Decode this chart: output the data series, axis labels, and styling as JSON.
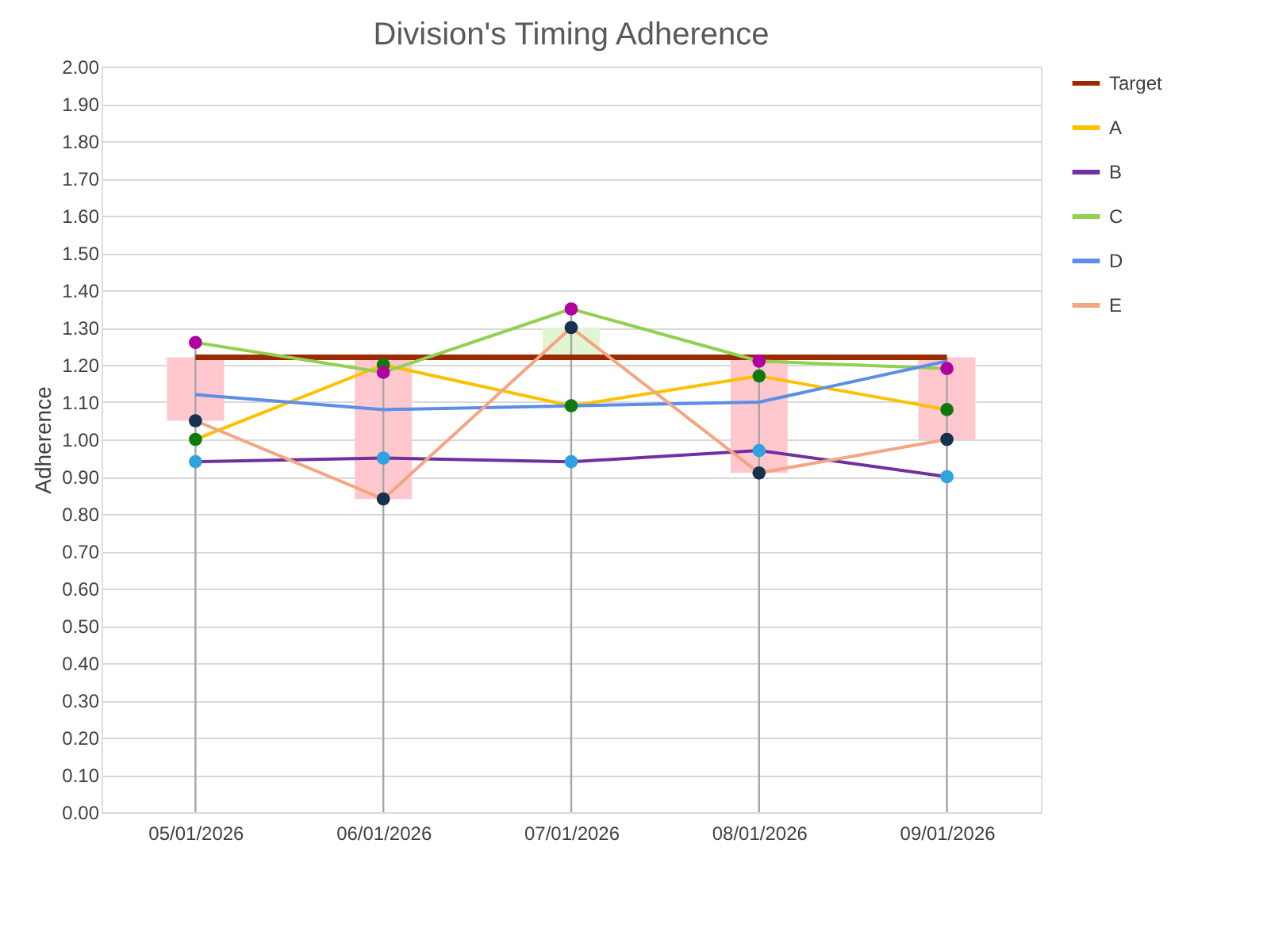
{
  "chart_data": {
    "type": "line",
    "title": "Division's Timing Adherence",
    "ylabel": "Adherence",
    "categories": [
      "05/01/2026",
      "06/01/2026",
      "07/01/2026",
      "08/01/2026",
      "09/01/2026"
    ],
    "ylim": [
      0,
      2
    ],
    "yticks": [
      {
        "value": 0,
        "label": "0.00"
      },
      {
        "value": 0.1,
        "label": "0.10"
      },
      {
        "value": 0.2,
        "label": "0.20"
      },
      {
        "value": 0.3,
        "label": "0.30"
      },
      {
        "value": 0.4,
        "label": "0.40"
      },
      {
        "value": 0.5,
        "label": "0.50"
      },
      {
        "value": 0.6,
        "label": "0.60"
      },
      {
        "value": 0.7,
        "label": "0.70"
      },
      {
        "value": 0.8,
        "label": "0.80"
      },
      {
        "value": 0.9,
        "label": "0.90"
      },
      {
        "value": 1,
        "label": "1.00"
      },
      {
        "value": 1.1,
        "label": "1.10"
      },
      {
        "value": 1.2,
        "label": "1.20"
      },
      {
        "value": 1.3,
        "label": "1.30"
      },
      {
        "value": 1.4,
        "label": "1.40"
      },
      {
        "value": 1.5,
        "label": "1.50"
      },
      {
        "value": 1.6,
        "label": "1.60"
      },
      {
        "value": 1.7,
        "label": "1.70"
      },
      {
        "value": 1.8,
        "label": "1.80"
      },
      {
        "value": 1.9,
        "label": "1.90"
      },
      {
        "value": 2,
        "label": "2.00"
      }
    ],
    "grid": "y",
    "legend": "right",
    "series": [
      {
        "type": "bar",
        "base": [
          1.05,
          0.84,
          1.22,
          0.91,
          1.0
        ],
        "values": [
          0.17,
          0.38,
          0.08,
          0.31,
          0.22
        ],
        "colors": [
          "#ffc7ce",
          "#ffc7ce",
          "#e2f5d3",
          "#ffc7ce",
          "#ffc7ce"
        ]
      },
      {
        "name": "Target",
        "color": "#9c2a00",
        "marker": "none",
        "values": [
          1.22,
          1.22,
          1.22,
          1.22,
          1.22
        ]
      },
      {
        "name": "A",
        "color": "#ffc000",
        "marker": "circle",
        "colors": [
          "#0e7a0d",
          "#0e7a0d",
          "#0e7a0d",
          "#0e7a0d",
          "#0e7a0d"
        ],
        "values": [
          1.0,
          1.2,
          1.09,
          1.17,
          1.08
        ]
      },
      {
        "name": "B",
        "color": "#7030a0",
        "marker": "circle",
        "colors": [
          "#2ea3e0",
          "#2ea3e0",
          "#2ea3e0",
          "#2ea3e0",
          "#2ea3e0"
        ],
        "values": [
          0.94,
          0.95,
          0.94,
          0.97,
          0.9
        ]
      },
      {
        "name": "C",
        "color": "#92d050",
        "marker": "circle",
        "colors": [
          "#b0009e",
          "#b0009e",
          "#b0009e",
          "#b0009e",
          "#b0009e"
        ],
        "values": [
          1.26,
          1.18,
          1.35,
          1.21,
          1.19
        ]
      },
      {
        "name": "D",
        "color": "#5b8ee6",
        "marker": "none",
        "values": [
          1.12,
          1.08,
          1.09,
          1.1,
          1.21
        ]
      },
      {
        "name": "E",
        "color": "#f4a582",
        "marker": "circle",
        "colors": [
          "#16324f",
          "#16324f",
          "#16324f",
          "#16324f",
          "#16324f"
        ],
        "values": [
          1.05,
          0.84,
          1.3,
          0.91,
          1.0
        ]
      }
    ],
    "ref_lines": [
      {
        "axis": "x",
        "value": "05/01/2026",
        "color": "#a6a6a6"
      },
      {
        "axis": "x",
        "value": "06/01/2026",
        "color": "#a6a6a6"
      },
      {
        "axis": "x",
        "value": "07/01/2026",
        "color": "#a6a6a6"
      },
      {
        "axis": "x",
        "value": "08/01/2026",
        "color": "#a6a6a6"
      },
      {
        "axis": "x",
        "value": "09/01/2026",
        "color": "#a6a6a6"
      }
    ]
  }
}
